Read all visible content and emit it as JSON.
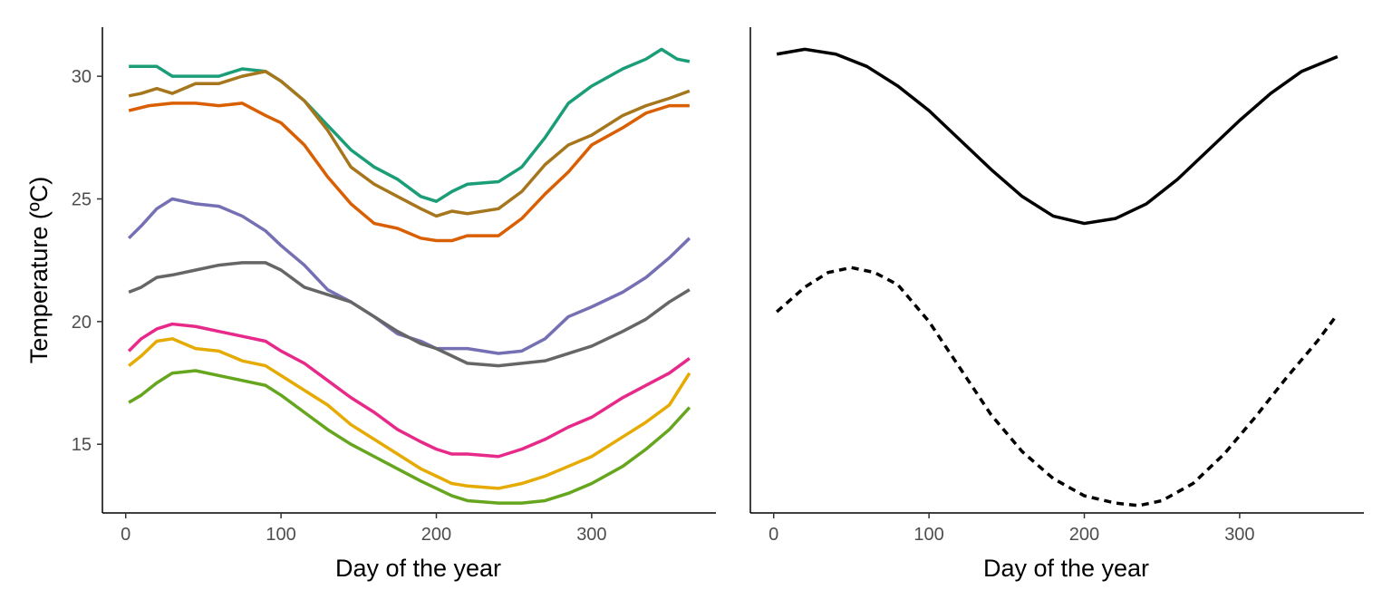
{
  "chart_data": [
    {
      "type": "line",
      "xlabel": "Day of the year",
      "ylabel": "Temperature (ºC)",
      "xlim": [
        -15,
        380
      ],
      "ylim": [
        12.2,
        32.0
      ],
      "xticks": [
        0,
        100,
        200,
        300
      ],
      "yticks": [
        15,
        20,
        25,
        30
      ],
      "grid": false,
      "legend": "none",
      "series": [
        {
          "color": "#1B9E77",
          "x": [
            2,
            15,
            20,
            30,
            45,
            60,
            75,
            90,
            100,
            115,
            130,
            145,
            160,
            175,
            190,
            200,
            210,
            220,
            240,
            255,
            270,
            285,
            300,
            320,
            335,
            345,
            355,
            363
          ],
          "y": [
            30.4,
            30.4,
            30.4,
            30.0,
            30.0,
            30.0,
            30.3,
            30.2,
            29.8,
            29.0,
            28.0,
            27.0,
            26.3,
            25.8,
            25.1,
            24.9,
            25.3,
            25.6,
            25.7,
            26.3,
            27.5,
            28.9,
            29.6,
            30.3,
            30.7,
            31.1,
            30.7,
            30.6
          ]
        },
        {
          "color": "#A6761D",
          "x": [
            2,
            10,
            20,
            30,
            45,
            60,
            75,
            90,
            100,
            115,
            130,
            145,
            160,
            175,
            190,
            200,
            210,
            220,
            240,
            255,
            270,
            285,
            300,
            320,
            335,
            350,
            363
          ],
          "y": [
            29.2,
            29.3,
            29.5,
            29.3,
            29.7,
            29.7,
            30.0,
            30.2,
            29.8,
            29.0,
            27.8,
            26.3,
            25.6,
            25.1,
            24.6,
            24.3,
            24.5,
            24.4,
            24.6,
            25.3,
            26.4,
            27.2,
            27.6,
            28.4,
            28.8,
            29.1,
            29.4
          ]
        },
        {
          "color": "#D95F02",
          "x": [
            2,
            15,
            30,
            45,
            60,
            75,
            90,
            100,
            115,
            130,
            145,
            160,
            175,
            190,
            200,
            210,
            220,
            240,
            255,
            270,
            285,
            300,
            320,
            335,
            350,
            363
          ],
          "y": [
            28.6,
            28.8,
            28.9,
            28.9,
            28.8,
            28.9,
            28.4,
            28.1,
            27.2,
            25.9,
            24.8,
            24.0,
            23.8,
            23.4,
            23.3,
            23.3,
            23.5,
            23.5,
            24.2,
            25.2,
            26.1,
            27.2,
            27.9,
            28.5,
            28.8,
            28.8
          ]
        },
        {
          "color": "#7570B3",
          "x": [
            2,
            10,
            20,
            30,
            45,
            60,
            75,
            90,
            100,
            115,
            130,
            145,
            160,
            175,
            190,
            200,
            210,
            220,
            240,
            255,
            270,
            285,
            300,
            320,
            335,
            350,
            363
          ],
          "y": [
            23.4,
            23.9,
            24.6,
            25.0,
            24.8,
            24.7,
            24.3,
            23.7,
            23.1,
            22.3,
            21.3,
            20.8,
            20.2,
            19.5,
            19.2,
            18.9,
            18.9,
            18.9,
            18.7,
            18.8,
            19.3,
            20.2,
            20.6,
            21.2,
            21.8,
            22.6,
            23.4
          ]
        },
        {
          "color": "#666666",
          "x": [
            2,
            10,
            20,
            30,
            45,
            60,
            75,
            90,
            100,
            115,
            130,
            145,
            160,
            175,
            190,
            200,
            210,
            220,
            240,
            255,
            270,
            285,
            300,
            320,
            335,
            350,
            363
          ],
          "y": [
            21.2,
            21.4,
            21.8,
            21.9,
            22.1,
            22.3,
            22.4,
            22.4,
            22.1,
            21.4,
            21.1,
            20.8,
            20.2,
            19.6,
            19.1,
            18.9,
            18.6,
            18.3,
            18.2,
            18.3,
            18.4,
            18.7,
            19.0,
            19.6,
            20.1,
            20.8,
            21.3
          ]
        },
        {
          "color": "#E7298A",
          "x": [
            2,
            10,
            20,
            30,
            45,
            60,
            75,
            90,
            100,
            115,
            130,
            145,
            160,
            175,
            190,
            200,
            210,
            220,
            240,
            255,
            270,
            285,
            300,
            320,
            335,
            350,
            363
          ],
          "y": [
            18.8,
            19.3,
            19.7,
            19.9,
            19.8,
            19.6,
            19.4,
            19.2,
            18.8,
            18.3,
            17.6,
            16.9,
            16.3,
            15.6,
            15.1,
            14.8,
            14.6,
            14.6,
            14.5,
            14.8,
            15.2,
            15.7,
            16.1,
            16.9,
            17.4,
            17.9,
            18.5
          ]
        },
        {
          "color": "#E6AB02",
          "x": [
            2,
            10,
            20,
            30,
            45,
            60,
            75,
            90,
            100,
            115,
            130,
            145,
            160,
            175,
            190,
            200,
            210,
            220,
            240,
            255,
            270,
            285,
            300,
            320,
            335,
            350,
            363
          ],
          "y": [
            18.2,
            18.6,
            19.2,
            19.3,
            18.9,
            18.8,
            18.4,
            18.2,
            17.8,
            17.2,
            16.6,
            15.8,
            15.2,
            14.6,
            14.0,
            13.7,
            13.4,
            13.3,
            13.2,
            13.4,
            13.7,
            14.1,
            14.5,
            15.3,
            15.9,
            16.6,
            17.9
          ]
        },
        {
          "color": "#66A61E",
          "x": [
            2,
            10,
            20,
            30,
            45,
            60,
            75,
            90,
            100,
            115,
            130,
            145,
            160,
            175,
            190,
            200,
            210,
            220,
            240,
            255,
            270,
            285,
            300,
            320,
            335,
            350,
            363
          ],
          "y": [
            16.7,
            17.0,
            17.5,
            17.9,
            18.0,
            17.8,
            17.6,
            17.4,
            17.0,
            16.3,
            15.6,
            15.0,
            14.5,
            14.0,
            13.5,
            13.2,
            12.9,
            12.7,
            12.6,
            12.6,
            12.7,
            13.0,
            13.4,
            14.1,
            14.8,
            15.6,
            16.5
          ]
        }
      ]
    },
    {
      "type": "line",
      "xlabel": "Day of the year",
      "xlim": [
        -15,
        380
      ],
      "ylim": [
        12.2,
        32.0
      ],
      "xticks": [
        0,
        100,
        200,
        300
      ],
      "grid": false,
      "legend": "none",
      "series": [
        {
          "color": "#000000",
          "dash": "solid",
          "x": [
            2,
            20,
            40,
            60,
            80,
            100,
            120,
            140,
            160,
            180,
            200,
            220,
            240,
            260,
            280,
            300,
            320,
            340,
            363
          ],
          "y": [
            30.9,
            31.1,
            30.9,
            30.4,
            29.6,
            28.6,
            27.4,
            26.2,
            25.1,
            24.3,
            24.0,
            24.2,
            24.8,
            25.8,
            27.0,
            28.2,
            29.3,
            30.2,
            30.8
          ]
        },
        {
          "color": "#000000",
          "dash": "dashed",
          "x": [
            2,
            20,
            35,
            50,
            65,
            80,
            100,
            120,
            140,
            160,
            180,
            200,
            220,
            235,
            250,
            270,
            290,
            310,
            330,
            350,
            363
          ],
          "y": [
            20.4,
            21.4,
            22.0,
            22.2,
            22.0,
            21.5,
            20.0,
            18.1,
            16.2,
            14.7,
            13.6,
            12.9,
            12.6,
            12.5,
            12.7,
            13.4,
            14.6,
            16.1,
            17.7,
            19.2,
            20.3
          ]
        }
      ]
    }
  ]
}
